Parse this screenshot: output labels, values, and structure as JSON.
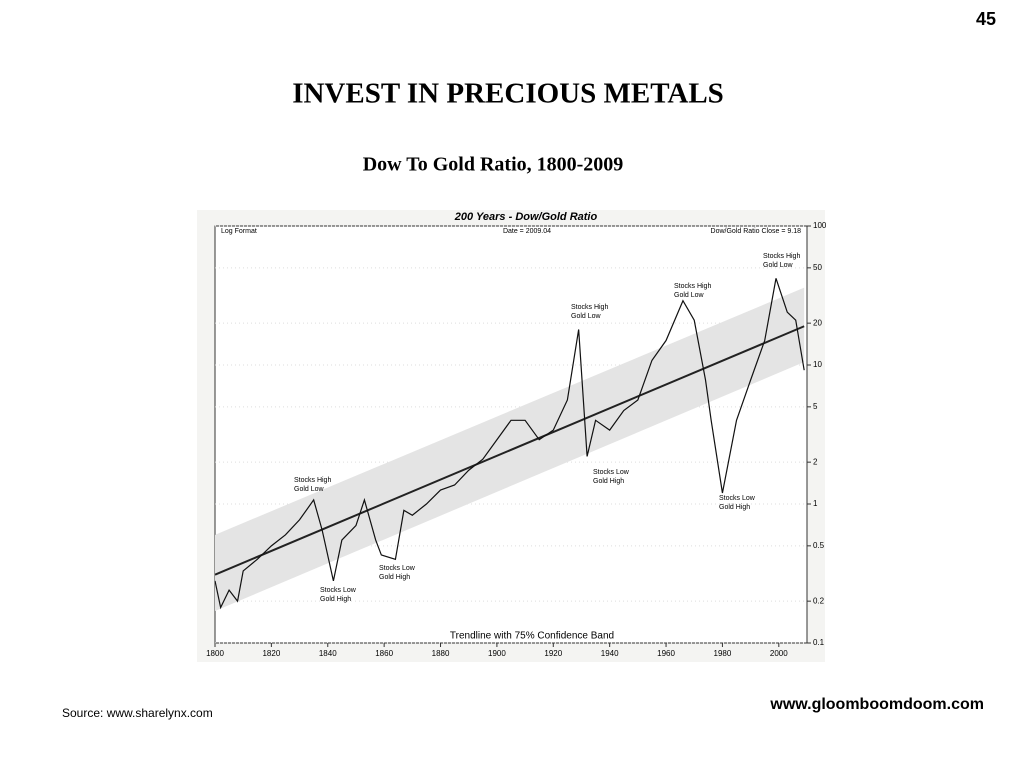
{
  "page_number": "45",
  "heading": "INVEST  IN  PRECIOUS  METALS",
  "subheading": "Dow To Gold Ratio, 1800-2009",
  "source": "Source:  www.sharelynx.com",
  "website": "www.gloomboomdoom.com",
  "chart_data": {
    "type": "line",
    "title": "200 Years - Dow/Gold Ratio",
    "notes": [
      "Log Format",
      "Date = 2009.04",
      "Dow/Gold Ratio Close = 9.18",
      "Trendline with 75% Confidence Band"
    ],
    "annotations": [
      [
        "Stocks High",
        "Gold Low"
      ],
      [
        "Stocks Low",
        "Gold High"
      ],
      [
        "Stocks Low",
        "Gold High"
      ],
      [
        "Stocks High",
        "Gold Low"
      ],
      [
        "Stocks Low",
        "Gold High"
      ],
      [
        "Stocks High",
        "Gold Low"
      ],
      [
        "Stocks Low",
        "Gold High"
      ],
      [
        "Stocks High",
        "Gold Low"
      ]
    ],
    "log_y": true,
    "xlim": [
      1800,
      2010
    ],
    "xticks": [
      1800,
      1820,
      1840,
      1860,
      1880,
      1900,
      1920,
      1940,
      1960,
      1980,
      2000
    ],
    "ylim": [
      0.1,
      100
    ],
    "yticks": [
      0.1,
      0.2,
      0.5,
      1,
      2,
      5,
      10,
      20,
      50,
      100
    ],
    "series": [
      {
        "name": "Dow/Gold Ratio",
        "color": "#111111",
        "x": [
          1800,
          1802,
          1805,
          1808,
          1810,
          1815,
          1820,
          1825,
          1830,
          1835,
          1838,
          1842,
          1845,
          1850,
          1853,
          1857,
          1859,
          1864,
          1867,
          1870,
          1875,
          1880,
          1885,
          1890,
          1895,
          1900,
          1905,
          1910,
          1915,
          1920,
          1925,
          1929,
          1932,
          1935,
          1940,
          1945,
          1950,
          1955,
          1960,
          1966,
          1970,
          1974,
          1976,
          1980,
          1985,
          1990,
          1995,
          1999,
          2003,
          2006,
          2009
        ],
        "values": [
          0.28,
          0.18,
          0.24,
          0.2,
          0.33,
          0.4,
          0.5,
          0.6,
          0.77,
          1.07,
          0.65,
          0.28,
          0.55,
          0.7,
          1.07,
          0.55,
          0.43,
          0.4,
          0.9,
          0.83,
          1.0,
          1.26,
          1.37,
          1.75,
          2.1,
          2.9,
          4.0,
          4.0,
          2.9,
          3.4,
          5.6,
          18,
          2.2,
          4,
          3.4,
          4.7,
          5.6,
          10.8,
          15,
          29,
          21,
          7.8,
          4,
          1.2,
          4,
          7.8,
          15,
          42,
          24,
          21,
          9.18
        ]
      }
    ],
    "trendline": {
      "color": "#222222",
      "x": [
        1800,
        2009
      ],
      "values": [
        0.31,
        19
      ]
    },
    "confidence_band": {
      "color": "#e4e4e4",
      "x": [
        1800,
        2009
      ],
      "lower": [
        0.17,
        10.5
      ],
      "upper": [
        0.6,
        36
      ]
    },
    "grid": true
  }
}
